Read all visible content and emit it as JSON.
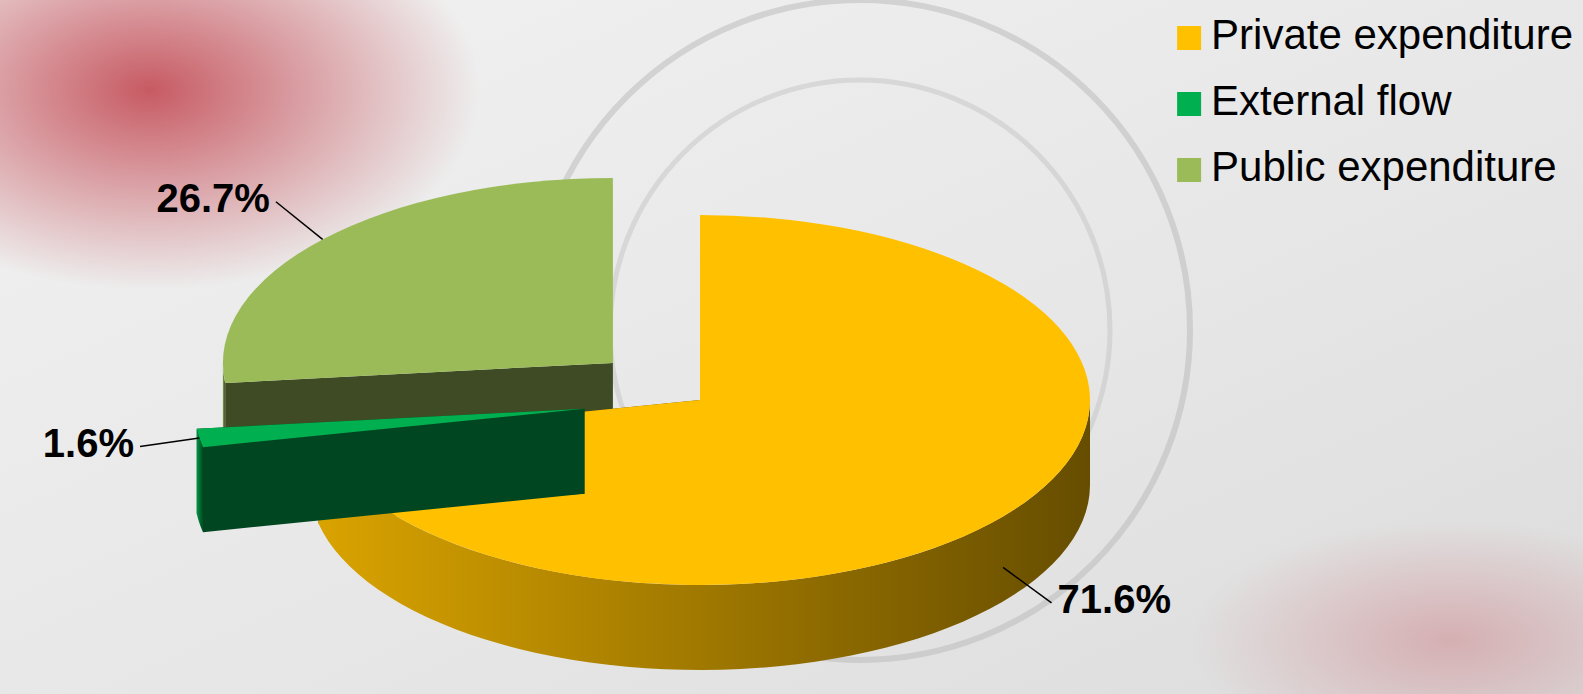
{
  "chart_data": {
    "type": "pie",
    "categories": [
      "Private expenditure",
      "External flow",
      "Public expenditure"
    ],
    "values": [
      71.6,
      1.6,
      26.7
    ],
    "value_labels": [
      "71.6%",
      "1.6%",
      "26.7%"
    ],
    "colors": [
      "#ffc000",
      "#00b050",
      "#9bbb59"
    ],
    "legend": "top-right",
    "data_labels": true
  }
}
